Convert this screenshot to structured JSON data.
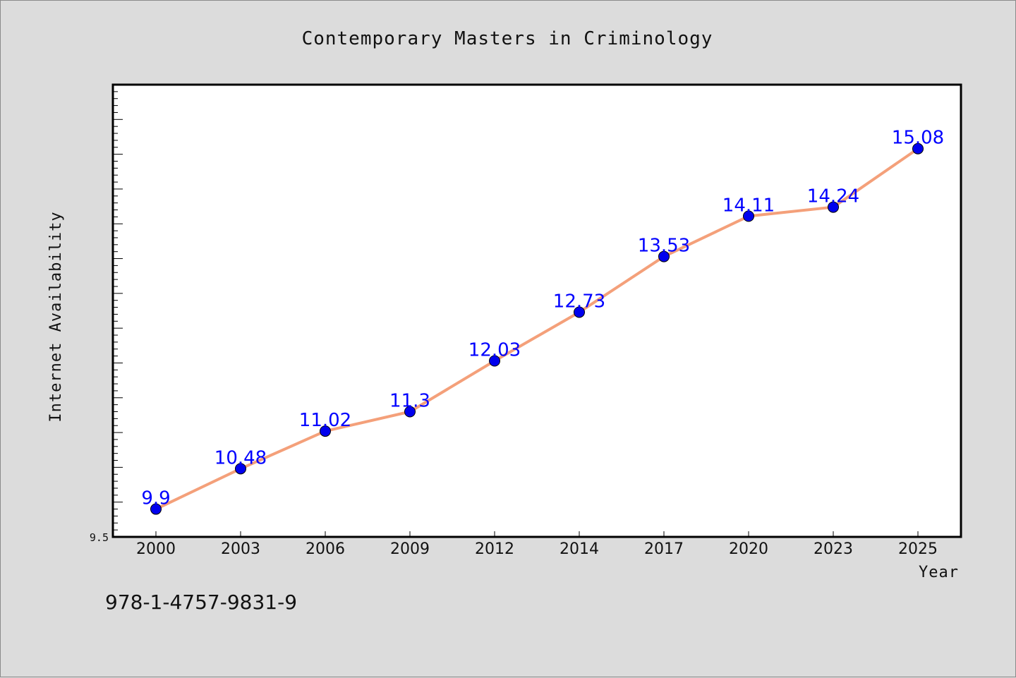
{
  "chart_data": {
    "type": "line",
    "title": "Contemporary Masters in Criminology",
    "xlabel": "Year",
    "ylabel": "Internet Availability",
    "categories": [
      "2000",
      "2003",
      "2006",
      "2009",
      "2012",
      "2014",
      "2017",
      "2020",
      "2023",
      "2025"
    ],
    "series": [
      {
        "values": [
          9.9,
          10.48,
          11.02,
          11.3,
          12.03,
          12.73,
          13.53,
          14.11,
          14.24,
          15.08
        ]
      }
    ],
    "data_labels": [
      "9.9",
      "10.48",
      "11.02",
      "11.3",
      "12.03",
      "12.73",
      "13.53",
      "14.11",
      "14.24",
      "15.08"
    ],
    "ylim": [
      9.5,
      16.0
    ],
    "yticks_labeled": [
      "9.5"
    ],
    "grid": false,
    "line_color": "#f4a07a",
    "marker_color": "#0000ee",
    "label_color": "#0000ff"
  },
  "footer": {
    "isbn": "978-1-4757-9831-9"
  }
}
